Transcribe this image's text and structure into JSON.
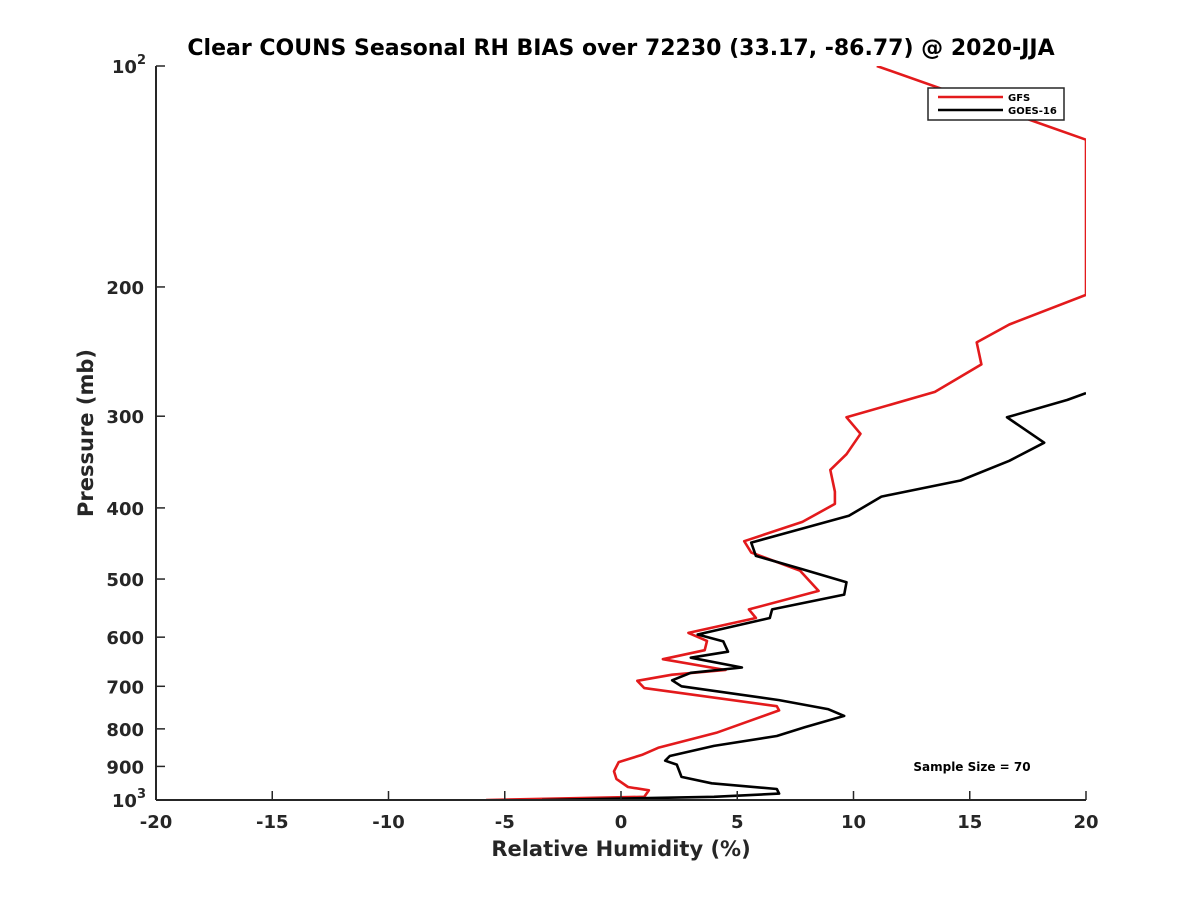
{
  "chart_data": {
    "type": "line",
    "title": "Clear COUNS Seasonal RH BIAS over 72230 (33.17, -86.77) @ 2020-JJA",
    "xlabel": "Relative Humidity (%)",
    "ylabel": "Pressure (mb)",
    "xlim": [
      -20,
      20
    ],
    "ylim": [
      100,
      1000
    ],
    "yscale": "log",
    "y_reversed": true,
    "x_ticks": [
      "-20",
      "-15",
      "-10",
      "-5",
      "0",
      "5",
      "10",
      "15",
      "20"
    ],
    "y_ticks": [
      {
        "value": 100,
        "base": "10",
        "exp": "2"
      },
      {
        "value": 200,
        "base": "200",
        "exp": ""
      },
      {
        "value": 300,
        "base": "300",
        "exp": ""
      },
      {
        "value": 400,
        "base": "400",
        "exp": ""
      },
      {
        "value": 500,
        "base": "500",
        "exp": ""
      },
      {
        "value": 600,
        "base": "600",
        "exp": ""
      },
      {
        "value": 700,
        "base": "700",
        "exp": ""
      },
      {
        "value": 800,
        "base": "800",
        "exp": ""
      },
      {
        "value": 900,
        "base": "900",
        "exp": ""
      },
      {
        "value": 1000,
        "base": "10",
        "exp": "3"
      }
    ],
    "grid": false,
    "legend_position": "top-right",
    "annotation": "Sample Size = 70",
    "series": [
      {
        "name": "GFS",
        "color": "#e31a1c",
        "points": [
          [
            11,
            100
          ],
          [
            20,
            126
          ],
          [
            20,
            205
          ],
          [
            16.7,
            225
          ],
          [
            15.3,
            238
          ],
          [
            15.5,
            255
          ],
          [
            13.5,
            278
          ],
          [
            9.7,
            301
          ],
          [
            10.3,
            317
          ],
          [
            9.7,
            338
          ],
          [
            9.0,
            355
          ],
          [
            9.2,
            380
          ],
          [
            9.2,
            395
          ],
          [
            7.8,
            418
          ],
          [
            5.3,
            444
          ],
          [
            5.6,
            460
          ],
          [
            7.7,
            487
          ],
          [
            8.5,
            519
          ],
          [
            5.5,
            550
          ],
          [
            5.8,
            565
          ],
          [
            2.9,
            592
          ],
          [
            3.7,
            607
          ],
          [
            3.6,
            625
          ],
          [
            1.8,
            643
          ],
          [
            4.5,
            665
          ],
          [
            2.2,
            675
          ],
          [
            0.7,
            688
          ],
          [
            1.0,
            704
          ],
          [
            6.7,
            745
          ],
          [
            6.8,
            755
          ],
          [
            5.0,
            791
          ],
          [
            4.1,
            810
          ],
          [
            1.6,
            849
          ],
          [
            0.9,
            868
          ],
          [
            -0.1,
            888
          ],
          [
            -0.3,
            914
          ],
          [
            -0.2,
            936
          ],
          [
            0.3,
            960
          ],
          [
            1.2,
            970
          ],
          [
            1.0,
            990
          ],
          [
            -5.8,
            1000
          ]
        ]
      },
      {
        "name": "GOES-16",
        "color": "#000000",
        "points": [
          [
            20,
            279
          ],
          [
            19.2,
            285
          ],
          [
            16.6,
            301
          ],
          [
            18.2,
            326
          ],
          [
            16.7,
            345
          ],
          [
            14.6,
            367
          ],
          [
            11.2,
            386
          ],
          [
            9.8,
            410
          ],
          [
            7.3,
            431
          ],
          [
            5.6,
            446
          ],
          [
            5.8,
            465
          ],
          [
            7.8,
            485
          ],
          [
            9.7,
            505
          ],
          [
            9.6,
            525
          ],
          [
            6.5,
            550
          ],
          [
            6.4,
            565
          ],
          [
            3.3,
            595
          ],
          [
            4.4,
            608
          ],
          [
            4.6,
            628
          ],
          [
            3.0,
            640
          ],
          [
            5.2,
            660
          ],
          [
            3.0,
            671
          ],
          [
            2.2,
            687
          ],
          [
            2.6,
            700
          ],
          [
            6.8,
            731
          ],
          [
            8.9,
            752
          ],
          [
            9.6,
            768
          ],
          [
            7.9,
            796
          ],
          [
            6.7,
            818
          ],
          [
            4.0,
            844
          ],
          [
            2.1,
            871
          ],
          [
            1.9,
            884
          ],
          [
            2.4,
            895
          ],
          [
            2.6,
            930
          ],
          [
            3.9,
            949
          ],
          [
            6.7,
            966
          ],
          [
            6.8,
            980
          ],
          [
            4.0,
            990
          ],
          [
            -3.4,
            1000
          ]
        ]
      }
    ]
  }
}
